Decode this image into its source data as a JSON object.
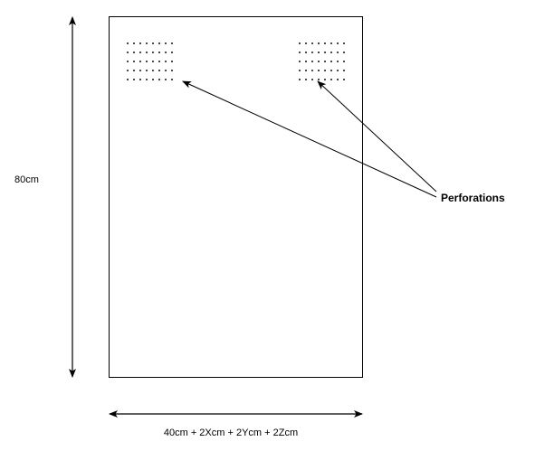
{
  "diagram": {
    "height_label": "80cm",
    "width_label": "40cm + 2Xcm + 2Ycm + 2Zcm",
    "callout_label": "Perforations",
    "perforation_grid": {
      "rows": 5,
      "cols": 8
    },
    "line_color": "#000000",
    "background_color": "#ffffff"
  }
}
